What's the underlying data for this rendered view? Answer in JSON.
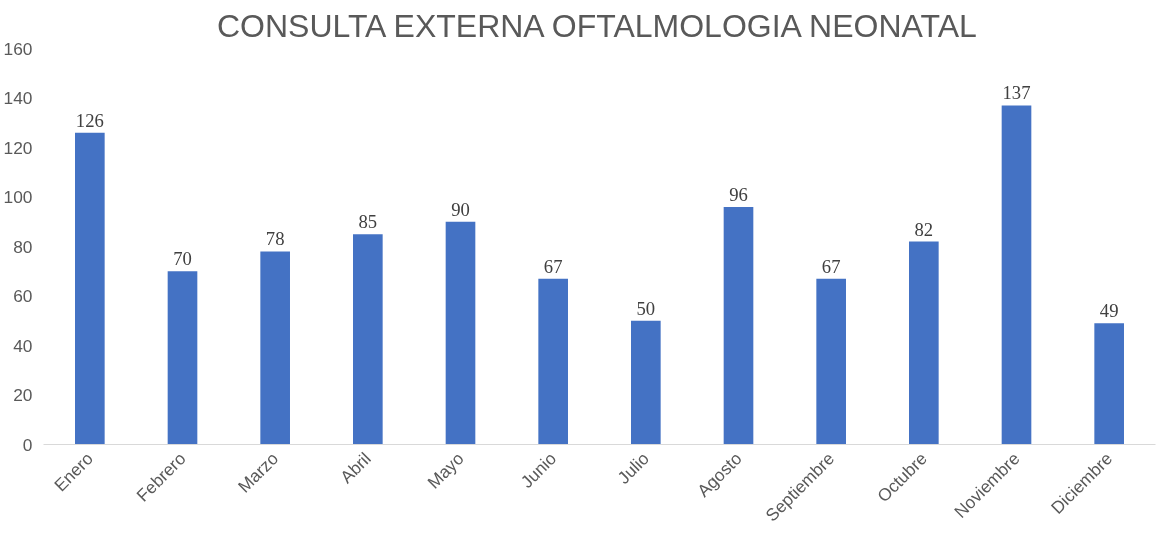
{
  "chart_data": {
    "type": "bar",
    "title": "CONSULTA EXTERNA OFTALMOLOGIA NEONATAL",
    "categories": [
      "Enero",
      "Febrero",
      "Marzo",
      "Abril",
      "Mayo",
      "Junio",
      "Julio",
      "Agosto",
      "Septiembre",
      "Octubre",
      "Noviembre",
      "Diciembre"
    ],
    "values": [
      126,
      70,
      78,
      85,
      90,
      67,
      50,
      96,
      67,
      82,
      137,
      49
    ],
    "color": "#4472c4",
    "ylim": [
      0,
      160
    ],
    "yticks": [
      0,
      20,
      40,
      60,
      80,
      100,
      120,
      140,
      160
    ],
    "grid": false,
    "data_labels": true
  }
}
